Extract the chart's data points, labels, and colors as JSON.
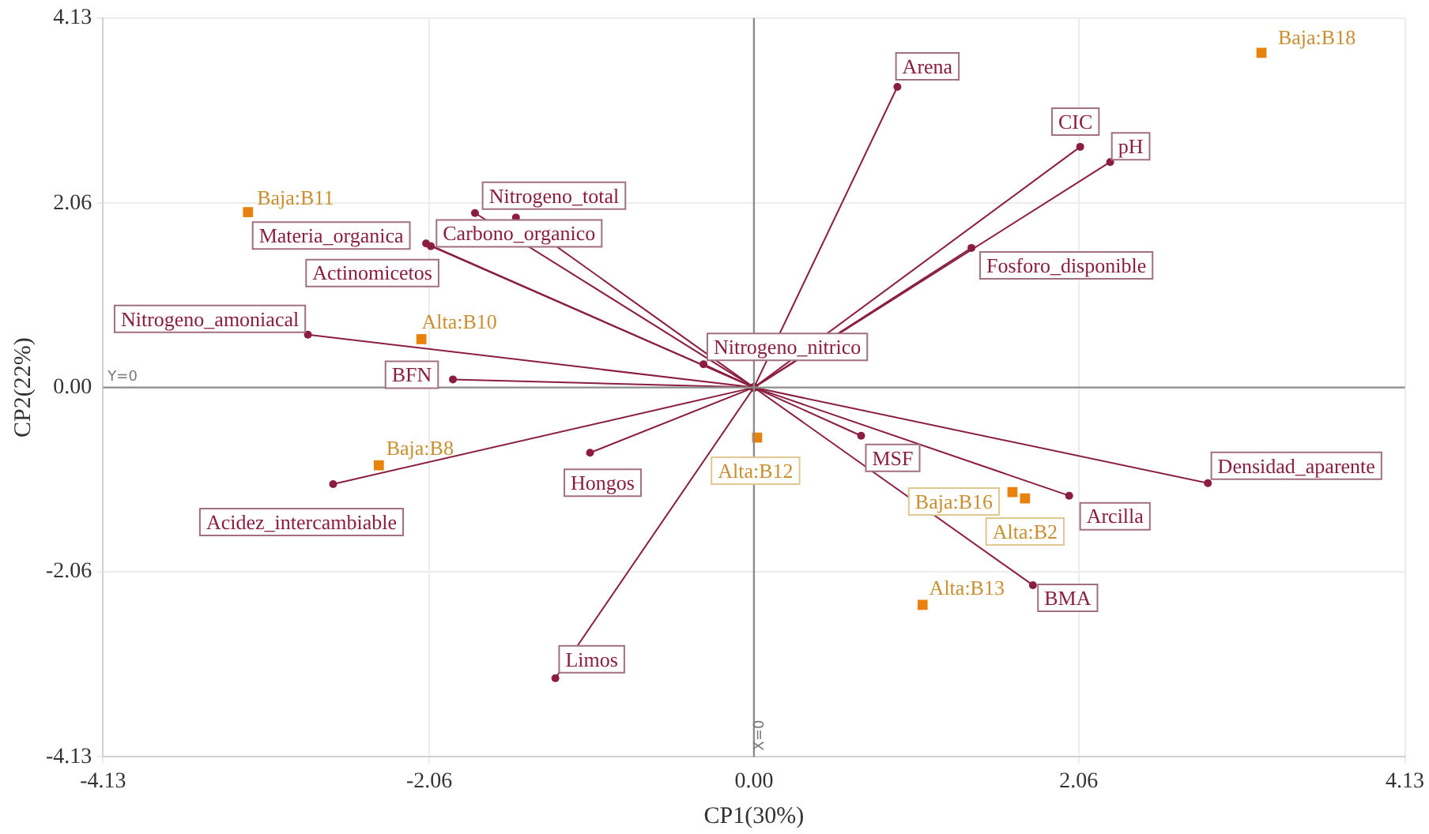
{
  "chart_data": {
    "type": "scatter",
    "xlabel": "CP1(30%)",
    "ylabel": "CP2(22%)",
    "xlim": [
      -4.13,
      4.13
    ],
    "ylim": [
      -4.13,
      4.13
    ],
    "xticks": [
      -4.13,
      -2.06,
      {
        "value": 0,
        "label": "0.00"
      },
      2.06,
      4.13
    ],
    "yticks": [
      -4.13,
      -2.06,
      {
        "value": 0,
        "label": "0.00"
      },
      2.06,
      4.13
    ],
    "grid": true,
    "legend": false,
    "ref_lines": [
      {
        "axis": "x",
        "value": 0,
        "label": "X=0",
        "color": "#8c8c8c"
      },
      {
        "axis": "y",
        "value": 0,
        "label": "Y=0",
        "color": "#8c8c8c"
      }
    ],
    "series": [
      {
        "type": "line",
        "name": "Nitrogeno_total",
        "color": "#8b1e3f",
        "x": [
          0,
          -1.77
        ],
        "values": [
          0,
          1.95
        ],
        "marker": "circle"
      },
      {
        "type": "line",
        "name": "Carbono_organico",
        "color": "#8b1e3f",
        "x": [
          0,
          -1.51
        ],
        "values": [
          0,
          1.9
        ],
        "marker": "circle"
      },
      {
        "type": "line",
        "name": "Materia_organica",
        "color": "#8b1e3f",
        "x": [
          0,
          -2.08
        ],
        "values": [
          0,
          1.61
        ],
        "marker": "circle"
      },
      {
        "type": "line",
        "name": "Actinomicetos",
        "color": "#8b1e3f",
        "x": [
          0,
          -2.05
        ],
        "values": [
          0,
          1.58
        ],
        "marker": "circle"
      },
      {
        "type": "line",
        "name": "Nitrogeno_amoniacal",
        "color": "#8b1e3f",
        "x": [
          0,
          -2.83
        ],
        "values": [
          0,
          0.59
        ],
        "marker": "circle"
      },
      {
        "type": "line",
        "name": "BFN",
        "color": "#8b1e3f",
        "x": [
          0,
          -1.91
        ],
        "values": [
          0,
          0.09
        ],
        "marker": "circle"
      },
      {
        "type": "line",
        "name": "Nitrogeno_nitrico",
        "color": "#8b1e3f",
        "x": [
          0,
          -0.32
        ],
        "values": [
          0,
          0.26
        ],
        "marker": "circle"
      },
      {
        "type": "line",
        "name": "Acidez_intercambiable",
        "color": "#8b1e3f",
        "x": [
          0,
          -2.67
        ],
        "values": [
          0,
          -1.08
        ],
        "marker": "circle"
      },
      {
        "type": "line",
        "name": "Hongos",
        "color": "#8b1e3f",
        "x": [
          0,
          -1.04
        ],
        "values": [
          0,
          -0.73
        ],
        "marker": "circle"
      },
      {
        "type": "line",
        "name": "Limos",
        "color": "#8b1e3f",
        "x": [
          0,
          -1.26
        ],
        "values": [
          0,
          -3.25
        ],
        "marker": "circle"
      },
      {
        "type": "line",
        "name": "Arena",
        "color": "#8b1e3f",
        "x": [
          0,
          0.91
        ],
        "values": [
          0,
          3.36
        ],
        "marker": "circle"
      },
      {
        "type": "line",
        "name": "CIC",
        "color": "#8b1e3f",
        "x": [
          0,
          2.07
        ],
        "values": [
          0,
          2.69
        ],
        "marker": "circle"
      },
      {
        "type": "line",
        "name": "pH",
        "color": "#8b1e3f",
        "x": [
          0,
          2.26
        ],
        "values": [
          0,
          2.52
        ],
        "marker": "circle"
      },
      {
        "type": "line",
        "name": "Fosforo_disponible",
        "color": "#8b1e3f",
        "x": [
          0,
          1.38
        ],
        "values": [
          0,
          1.56
        ],
        "marker": "circle"
      },
      {
        "type": "line",
        "name": "MSF",
        "color": "#8b1e3f",
        "x": [
          0,
          0.68
        ],
        "values": [
          0,
          -0.54
        ],
        "marker": "circle"
      },
      {
        "type": "line",
        "name": "Arcilla",
        "color": "#8b1e3f",
        "x": [
          0,
          2.0
        ],
        "values": [
          0,
          -1.21
        ],
        "marker": "circle"
      },
      {
        "type": "line",
        "name": "Densidad_aparente",
        "color": "#8b1e3f",
        "x": [
          0,
          2.88
        ],
        "values": [
          0,
          -1.07
        ],
        "marker": "circle"
      },
      {
        "type": "line",
        "name": "BMA",
        "color": "#8b1e3f",
        "x": [
          0,
          1.77
        ],
        "values": [
          0,
          -2.21
        ],
        "marker": "circle"
      },
      {
        "type": "scatter",
        "color": "#e8820c",
        "marker": "square",
        "x": [
          -3.21,
          -2.11,
          -2.38,
          3.22,
          0.02,
          1.64,
          1.72,
          1.07
        ],
        "values": [
          1.96,
          0.54,
          -0.87,
          3.74,
          -0.56,
          -1.17,
          -1.24,
          -2.43
        ],
        "value_labels": [
          "Baja:B11",
          "Alta:B10",
          "Baja:B8",
          "Baja:B18",
          "Alta:B12",
          "Baja:B16",
          "Alta:B2",
          "Alta:B13"
        ]
      }
    ]
  }
}
